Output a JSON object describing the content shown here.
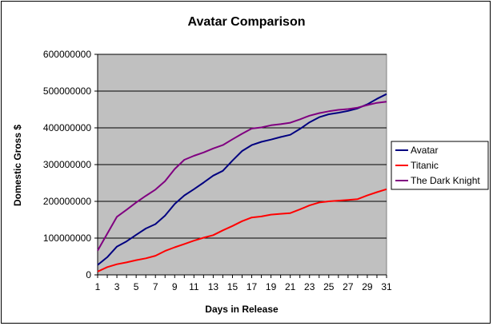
{
  "chart_data": {
    "type": "line",
    "title": "Avatar Comparison",
    "xlabel": "Days in Release",
    "ylabel": "Domestic Gross $",
    "ylim": [
      0,
      600000000
    ],
    "yticks": [
      "0",
      "100000000",
      "200000000",
      "300000000",
      "400000000",
      "500000000",
      "600000000"
    ],
    "xticks": [
      "1",
      "3",
      "5",
      "7",
      "9",
      "11",
      "13",
      "15",
      "17",
      "19",
      "21",
      "23",
      "25",
      "27",
      "29",
      "31"
    ],
    "x": [
      1,
      2,
      3,
      4,
      5,
      6,
      7,
      8,
      9,
      10,
      11,
      12,
      13,
      14,
      15,
      16,
      17,
      18,
      19,
      20,
      21,
      22,
      23,
      24,
      25,
      26,
      27,
      28,
      29,
      30,
      31
    ],
    "grid": true,
    "legend_position": "right",
    "plot_background": "#c0c0c0",
    "series": [
      {
        "name": "Avatar",
        "color": "#000080",
        "values": [
          27000000,
          48000000,
          77000000,
          91000000,
          109000000,
          126000000,
          138000000,
          161000000,
          193000000,
          216000000,
          233000000,
          251000000,
          270000000,
          283000000,
          311000000,
          337000000,
          353000000,
          362000000,
          368000000,
          375000000,
          381000000,
          397000000,
          415000000,
          429000000,
          437000000,
          441000000,
          446000000,
          453000000,
          464000000,
          479000000,
          492000000
        ]
      },
      {
        "name": "Titanic",
        "color": "#ff0000",
        "values": [
          9000000,
          21000000,
          29000000,
          34000000,
          40000000,
          45000000,
          52000000,
          65000000,
          75000000,
          84000000,
          93000000,
          101000000,
          108000000,
          121000000,
          133000000,
          146000000,
          156000000,
          159000000,
          164000000,
          166000000,
          168000000,
          178000000,
          189000000,
          197000000,
          200000000,
          202000000,
          204000000,
          206000000,
          216000000,
          225000000,
          233000000
        ]
      },
      {
        "name": "The Dark Knight",
        "color": "#800080",
        "values": [
          66000000,
          112000000,
          158000000,
          177000000,
          197000000,
          215000000,
          232000000,
          255000000,
          288000000,
          313000000,
          324000000,
          333000000,
          344000000,
          353000000,
          369000000,
          384000000,
          398000000,
          401000000,
          407000000,
          410000000,
          414000000,
          423000000,
          433000000,
          440000000,
          445000000,
          449000000,
          451000000,
          455000000,
          462000000,
          468000000,
          471000000
        ]
      }
    ]
  }
}
